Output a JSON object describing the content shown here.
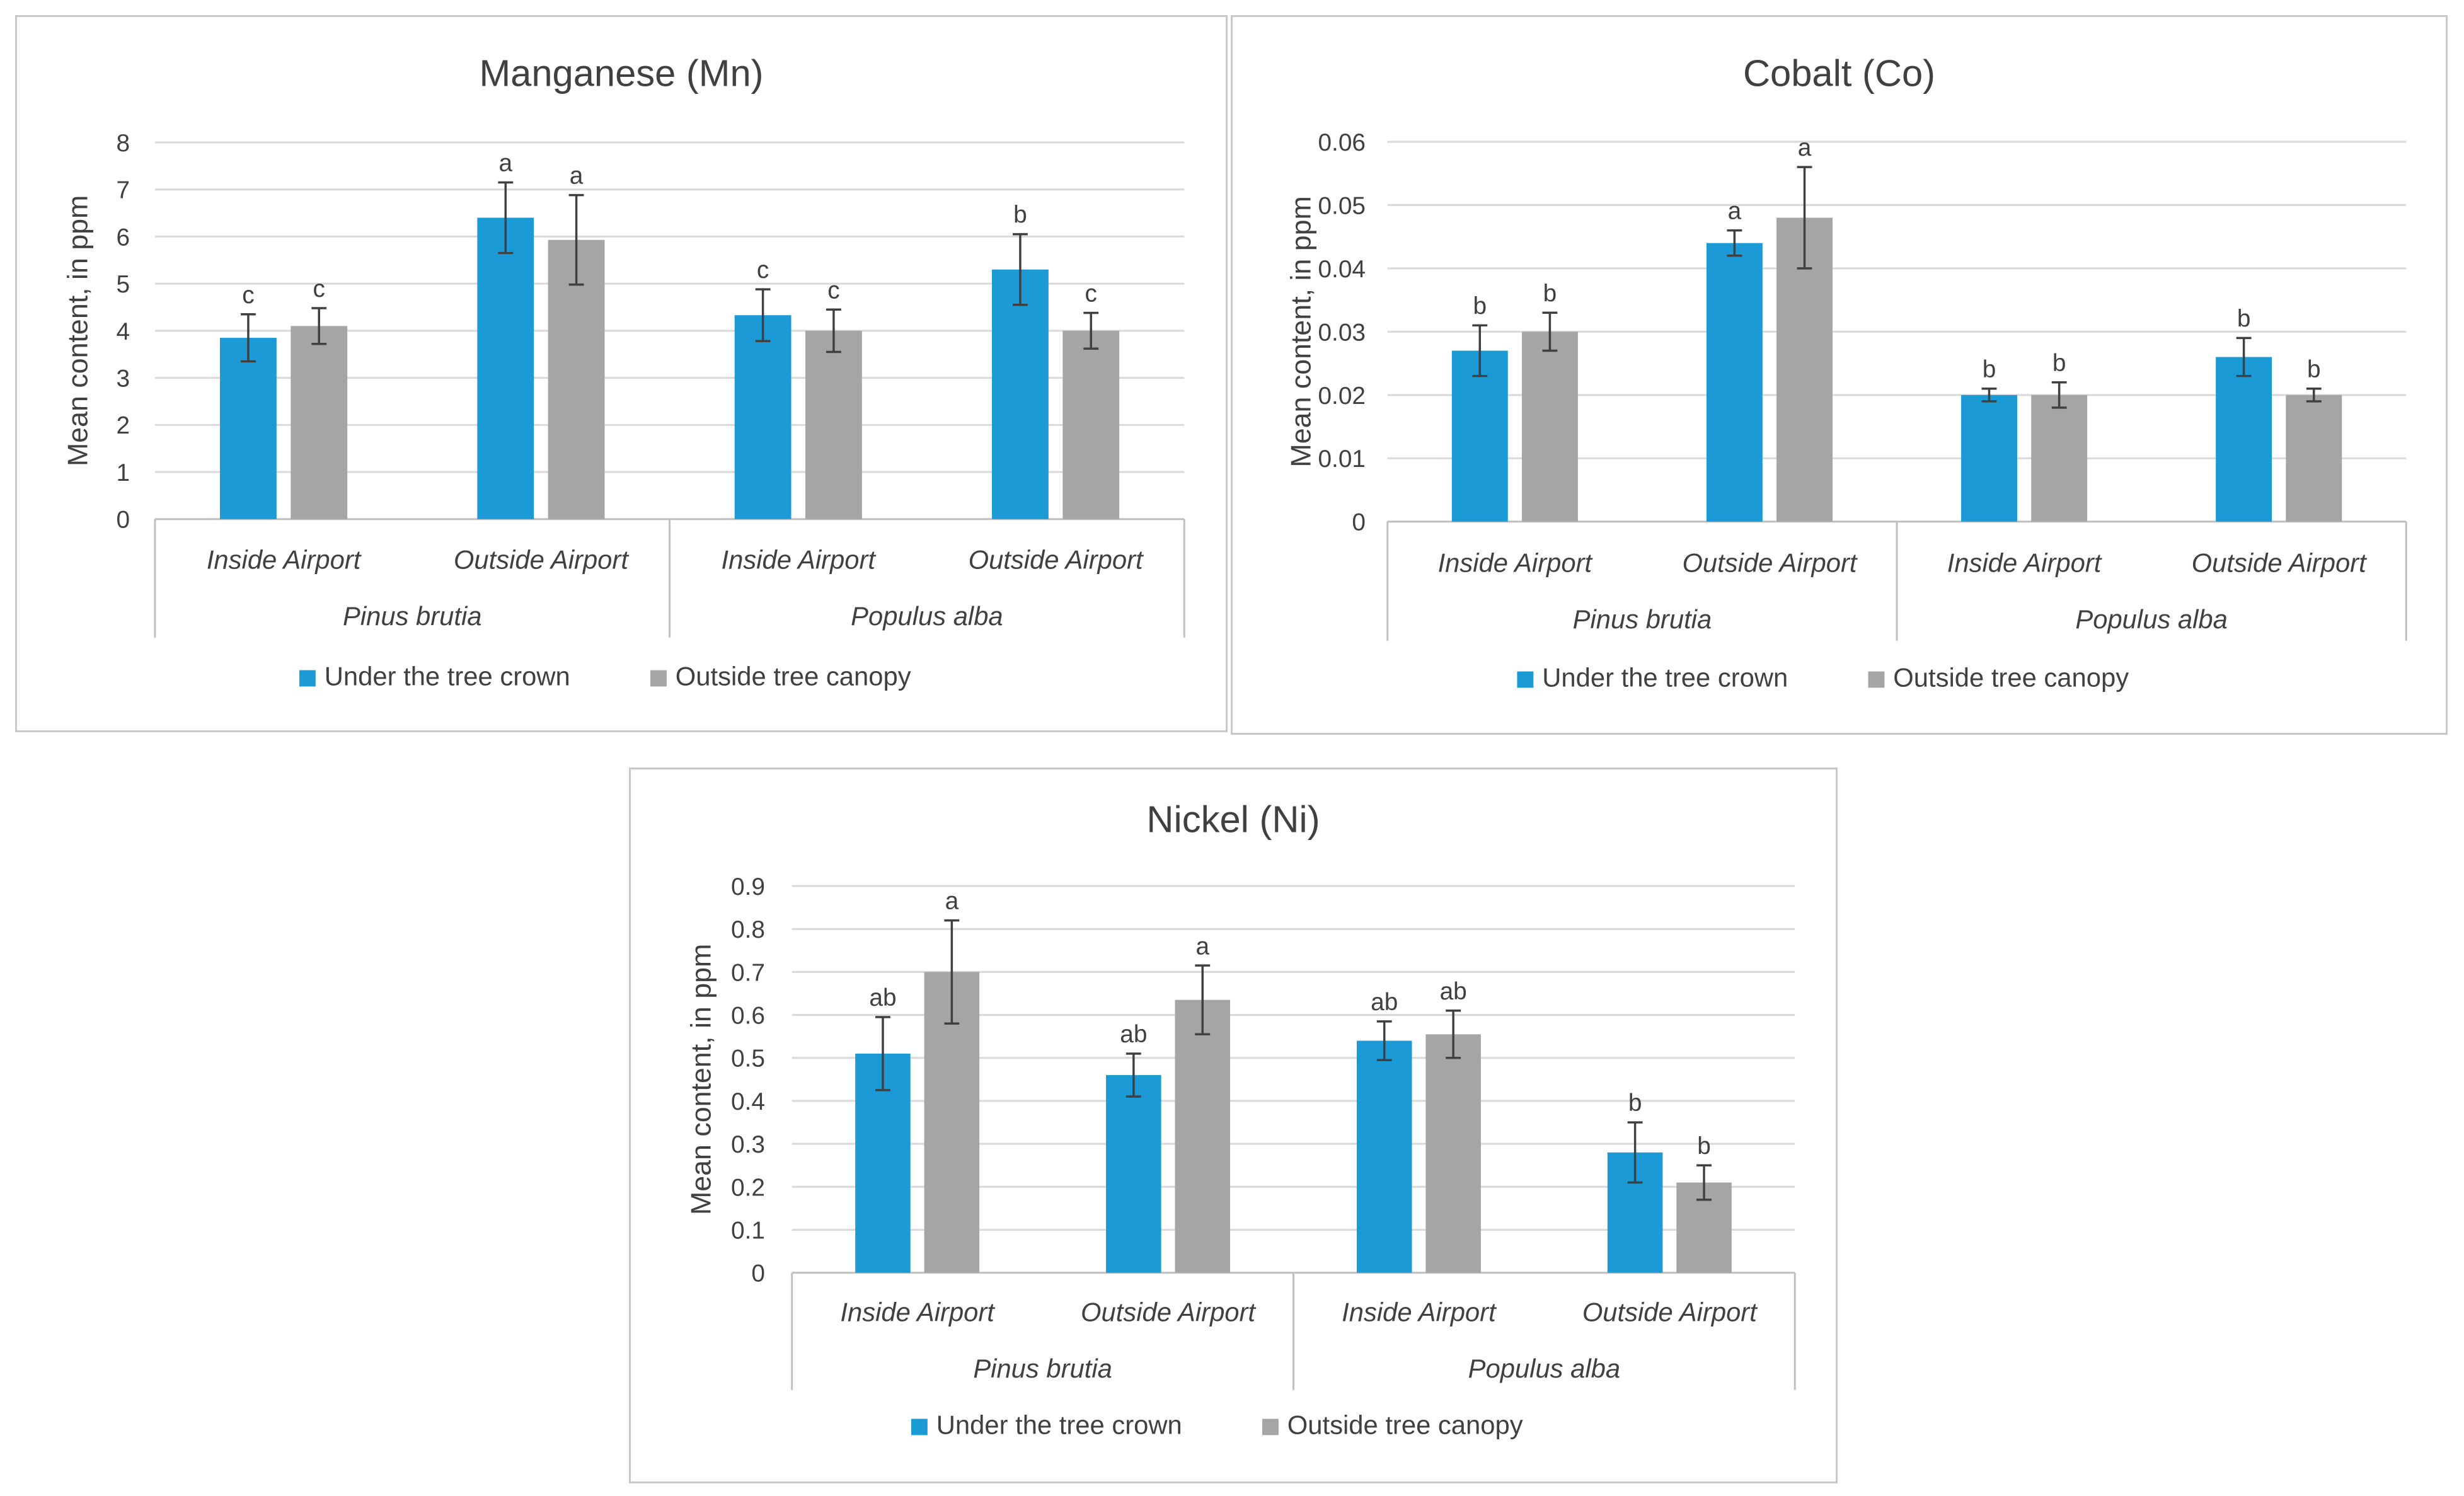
{
  "colors": {
    "series_under": "#1b9ad6",
    "series_outside": "#a5a5a5",
    "grid": "#d9d9d9",
    "axis": "#bfbfbf",
    "error": "#404040",
    "text": "#404040"
  },
  "chart_data": [
    {
      "type": "bar",
      "title": "Manganese (Mn)",
      "ylabel": "Mean content, in ppm",
      "xlabel": "",
      "ylim": [
        0,
        8
      ],
      "yticks": [
        "0",
        "1",
        "2",
        "3",
        "4",
        "5",
        "6",
        "7",
        "8"
      ],
      "legend_position": "bottom",
      "categories": [
        "Inside Airport",
        "Outside Airport",
        "Inside Airport",
        "Outside Airport"
      ],
      "groups": [
        {
          "label": "Pinus brutia",
          "span": [
            0,
            1
          ]
        },
        {
          "label": "Populus alba",
          "span": [
            2,
            3
          ]
        }
      ],
      "series": [
        {
          "name": "Under the tree crown",
          "values": [
            3.85,
            6.4,
            4.33,
            5.3
          ],
          "errors": [
            0.5,
            0.75,
            0.55,
            0.75
          ],
          "labels": [
            "c",
            "a",
            "c",
            "b"
          ]
        },
        {
          "name": "Outside tree canopy",
          "values": [
            4.1,
            5.93,
            4.0,
            4.0
          ],
          "errors": [
            0.38,
            0.95,
            0.45,
            0.38
          ],
          "labels": [
            "c",
            "a",
            "c",
            "c"
          ]
        }
      ]
    },
    {
      "type": "bar",
      "title": "Cobalt (Co)",
      "ylabel": "Mean content, in ppm",
      "xlabel": "",
      "ylim": [
        0,
        0.06
      ],
      "yticks": [
        "0",
        "0.01",
        "0.02",
        "0.03",
        "0.04",
        "0.05",
        "0.06"
      ],
      "legend_position": "bottom",
      "categories": [
        "Inside Airport",
        "Outside Airport",
        "Inside Airport",
        "Outside Airport"
      ],
      "groups": [
        {
          "label": "Pinus brutia",
          "span": [
            0,
            1
          ]
        },
        {
          "label": "Populus alba",
          "span": [
            2,
            3
          ]
        }
      ],
      "series": [
        {
          "name": "Under the tree crown",
          "values": [
            0.027,
            0.044,
            0.02,
            0.026
          ],
          "errors": [
            0.004,
            0.002,
            0.001,
            0.003
          ],
          "labels": [
            "b",
            "a",
            "b",
            "b"
          ]
        },
        {
          "name": "Outside tree canopy",
          "values": [
            0.03,
            0.048,
            0.02,
            0.02
          ],
          "errors": [
            0.003,
            0.008,
            0.002,
            0.001
          ],
          "labels": [
            "b",
            "a",
            "b",
            "b"
          ]
        }
      ]
    },
    {
      "type": "bar",
      "title": "Nickel (Ni)",
      "ylabel": "Mean content, in ppm",
      "xlabel": "",
      "ylim": [
        0,
        0.9
      ],
      "yticks": [
        "0",
        "0.1",
        "0.2",
        "0.3",
        "0.4",
        "0.5",
        "0.6",
        "0.7",
        "0.8",
        "0.9"
      ],
      "legend_position": "bottom",
      "categories": [
        "Inside Airport",
        "Outside Airport",
        "Inside Airport",
        "Outside Airport"
      ],
      "groups": [
        {
          "label": "Pinus brutia",
          "span": [
            0,
            1
          ]
        },
        {
          "label": "Populus alba",
          "span": [
            2,
            3
          ]
        }
      ],
      "series": [
        {
          "name": "Under the tree crown",
          "values": [
            0.51,
            0.46,
            0.54,
            0.28
          ],
          "errors": [
            0.085,
            0.05,
            0.045,
            0.07
          ],
          "labels": [
            "ab",
            "ab",
            "ab",
            "b"
          ]
        },
        {
          "name": "Outside tree canopy",
          "values": [
            0.7,
            0.635,
            0.555,
            0.21
          ],
          "errors": [
            0.12,
            0.08,
            0.055,
            0.04
          ],
          "labels": [
            "a",
            "a",
            "ab",
            "b"
          ]
        }
      ]
    }
  ]
}
